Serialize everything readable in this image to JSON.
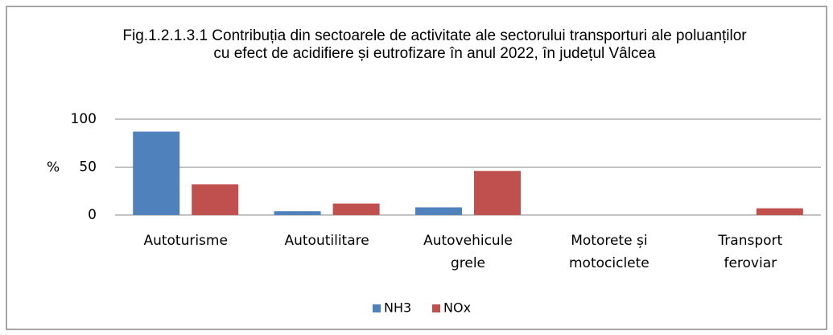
{
  "chart_data": {
    "type": "bar",
    "title": "Fig.1.2.1.3.1 Contribuția din sectoarele de activitate ale sectorului transporturi ale poluanților cu efect de acidifiere și eutrofizare în anul 2022, în județul Vâlcea",
    "ylabel": "%",
    "categories": [
      "Autoturisme",
      "Autoutilitare",
      "Autovehicule grele",
      "Motorete și motociclete",
      "Transport feroviar"
    ],
    "series": [
      {
        "name": "NH3",
        "color": "#4f81bd",
        "values": [
          87,
          4,
          8,
          0,
          0
        ]
      },
      {
        "name": "NOx",
        "color": "#c0504d",
        "values": [
          32,
          12,
          46,
          0,
          7
        ]
      }
    ],
    "ylim": [
      0,
      100
    ],
    "yticks": [
      0,
      50,
      100
    ],
    "grid": true,
    "legend": "bottom"
  }
}
